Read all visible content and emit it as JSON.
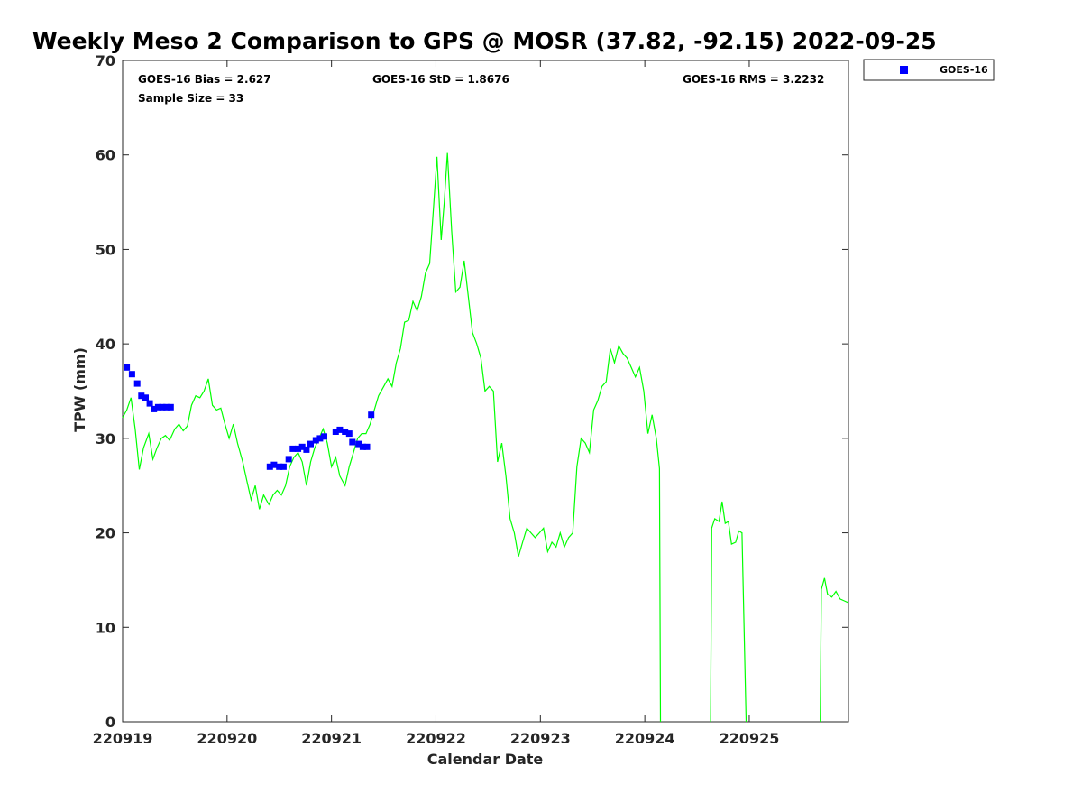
{
  "chart_data": {
    "type": "line",
    "title": "Weekly Meso 2 Comparison to GPS @ MOSR (37.82, -92.15) 2022-09-25",
    "xlabel": "Calendar Date",
    "ylabel": "TPW (mm)",
    "xlim": [
      220919,
      220925.95
    ],
    "ylim": [
      0,
      70
    ],
    "x_ticks": [
      {
        "value": 220919,
        "label": "220919"
      },
      {
        "value": 220920,
        "label": "220920"
      },
      {
        "value": 220921,
        "label": "220921"
      },
      {
        "value": 220922,
        "label": "220922"
      },
      {
        "value": 220923,
        "label": "220923"
      },
      {
        "value": 220924,
        "label": "220924"
      },
      {
        "value": 220925,
        "label": "220925"
      }
    ],
    "y_ticks": [
      0,
      10,
      20,
      30,
      40,
      50,
      60,
      70
    ],
    "grid": false,
    "legend_position": "top-right, outside plot",
    "stats": {
      "bias": "GOES-16 Bias = 2.627",
      "std": "GOES-16 StD = 1.8676",
      "rms": "GOES-16 RMS = 3.2232",
      "sample": "Sample Size = 33"
    },
    "series": [
      {
        "name": "GOES-16",
        "kind": "scatter",
        "marker": "square",
        "color": "#0000ff",
        "points": [
          [
            220919.04,
            37.5
          ],
          [
            220919.09,
            36.8
          ],
          [
            220919.14,
            35.8
          ],
          [
            220919.18,
            34.5
          ],
          [
            220919.22,
            34.3
          ],
          [
            220919.26,
            33.7
          ],
          [
            220919.3,
            33.1
          ],
          [
            220919.34,
            33.3
          ],
          [
            220919.38,
            33.3
          ],
          [
            220919.42,
            33.3
          ],
          [
            220919.46,
            33.3
          ],
          [
            220920.41,
            27.0
          ],
          [
            220920.45,
            27.2
          ],
          [
            220920.5,
            27.0
          ],
          [
            220920.54,
            27.0
          ],
          [
            220920.59,
            27.8
          ],
          [
            220920.63,
            28.9
          ],
          [
            220920.68,
            28.9
          ],
          [
            220920.72,
            29.1
          ],
          [
            220920.76,
            28.8
          ],
          [
            220920.8,
            29.4
          ],
          [
            220920.85,
            29.8
          ],
          [
            220920.89,
            30.0
          ],
          [
            220920.93,
            30.2
          ],
          [
            220921.04,
            30.7
          ],
          [
            220921.08,
            30.9
          ],
          [
            220921.13,
            30.7
          ],
          [
            220921.17,
            30.5
          ],
          [
            220921.2,
            29.6
          ],
          [
            220921.26,
            29.4
          ],
          [
            220921.3,
            29.1
          ],
          [
            220921.34,
            29.1
          ],
          [
            220921.38,
            32.5
          ]
        ]
      },
      {
        "kind": "line",
        "color": "#00ff00",
        "points": [
          [
            220919.0,
            32.2
          ],
          [
            220919.04,
            33.0
          ],
          [
            220919.08,
            34.3
          ],
          [
            220919.12,
            31.0
          ],
          [
            220919.16,
            26.7
          ],
          [
            220919.2,
            29.0
          ],
          [
            220919.25,
            30.5
          ],
          [
            220919.29,
            27.8
          ],
          [
            220919.33,
            29.0
          ],
          [
            220919.37,
            30.0
          ],
          [
            220919.41,
            30.3
          ],
          [
            220919.45,
            29.8
          ],
          [
            220919.5,
            31.0
          ],
          [
            220919.54,
            31.5
          ],
          [
            220919.58,
            30.8
          ],
          [
            220919.62,
            31.3
          ],
          [
            220919.66,
            33.5
          ],
          [
            220919.7,
            34.5
          ],
          [
            220919.74,
            34.3
          ],
          [
            220919.78,
            35.0
          ],
          [
            220919.82,
            36.3
          ],
          [
            220919.86,
            33.5
          ],
          [
            220919.9,
            33.0
          ],
          [
            220919.94,
            33.2
          ],
          [
            220919.98,
            31.5
          ],
          [
            220920.02,
            30.0
          ],
          [
            220920.06,
            31.5
          ],
          [
            220920.1,
            29.5
          ],
          [
            220920.15,
            27.5
          ],
          [
            220920.19,
            25.5
          ],
          [
            220920.23,
            23.5
          ],
          [
            220920.27,
            25.0
          ],
          [
            220920.31,
            22.5
          ],
          [
            220920.35,
            24.0
          ],
          [
            220920.4,
            23.0
          ],
          [
            220920.44,
            24.0
          ],
          [
            220920.48,
            24.5
          ],
          [
            220920.52,
            24.0
          ],
          [
            220920.56,
            25.0
          ],
          [
            220920.6,
            27.0
          ],
          [
            220920.64,
            28.0
          ],
          [
            220920.68,
            28.5
          ],
          [
            220920.72,
            27.5
          ],
          [
            220920.76,
            25.0
          ],
          [
            220920.8,
            27.5
          ],
          [
            220920.84,
            29.0
          ],
          [
            220920.88,
            30.0
          ],
          [
            220920.92,
            31.0
          ],
          [
            220920.96,
            29.5
          ],
          [
            220921.0,
            27.0
          ],
          [
            220921.04,
            28.0
          ],
          [
            220921.08,
            26.0
          ],
          [
            220921.13,
            25.0
          ],
          [
            220921.17,
            27.0
          ],
          [
            220921.21,
            28.5
          ],
          [
            220921.25,
            30.0
          ],
          [
            220921.29,
            30.5
          ],
          [
            220921.33,
            30.5
          ],
          [
            220921.37,
            31.5
          ],
          [
            220921.41,
            33.0
          ],
          [
            220921.45,
            34.5
          ],
          [
            220921.5,
            35.5
          ],
          [
            220921.54,
            36.3
          ],
          [
            220921.58,
            35.5
          ],
          [
            220921.62,
            38.0
          ],
          [
            220921.66,
            39.5
          ],
          [
            220921.7,
            42.3
          ],
          [
            220921.74,
            42.5
          ],
          [
            220921.78,
            44.5
          ],
          [
            220921.82,
            43.5
          ],
          [
            220921.86,
            45.0
          ],
          [
            220921.9,
            47.5
          ],
          [
            220921.94,
            48.5
          ],
          [
            220921.98,
            55.0
          ],
          [
            220922.01,
            59.8
          ],
          [
            220922.05,
            51.0
          ],
          [
            220922.08,
            55.0
          ],
          [
            220922.11,
            60.2
          ],
          [
            220922.15,
            52.0
          ],
          [
            220922.19,
            45.5
          ],
          [
            220922.23,
            46.0
          ],
          [
            220922.27,
            48.8
          ],
          [
            220922.31,
            45.0
          ],
          [
            220922.35,
            41.2
          ],
          [
            220922.39,
            40.0
          ],
          [
            220922.43,
            38.5
          ],
          [
            220922.47,
            35.0
          ],
          [
            220922.51,
            35.5
          ],
          [
            220922.55,
            35.0
          ],
          [
            220922.59,
            27.5
          ],
          [
            220922.63,
            29.5
          ],
          [
            220922.67,
            26.0
          ],
          [
            220922.71,
            21.5
          ],
          [
            220922.75,
            20.0
          ],
          [
            220922.79,
            17.5
          ],
          [
            220922.83,
            19.0
          ],
          [
            220922.87,
            20.5
          ],
          [
            220922.91,
            20.0
          ],
          [
            220922.95,
            19.5
          ],
          [
            220922.99,
            20.0
          ],
          [
            220923.03,
            20.5
          ],
          [
            220923.07,
            18.0
          ],
          [
            220923.11,
            19.0
          ],
          [
            220923.15,
            18.5
          ],
          [
            220923.19,
            20.0
          ],
          [
            220923.23,
            18.5
          ],
          [
            220923.27,
            19.5
          ],
          [
            220923.31,
            20.0
          ],
          [
            220923.35,
            27.0
          ],
          [
            220923.39,
            30.0
          ],
          [
            220923.43,
            29.5
          ],
          [
            220923.47,
            28.5
          ],
          [
            220923.51,
            33.0
          ],
          [
            220923.55,
            34.0
          ],
          [
            220923.59,
            35.5
          ],
          [
            220923.63,
            36.0
          ],
          [
            220923.67,
            39.5
          ],
          [
            220923.71,
            38.0
          ],
          [
            220923.75,
            39.8
          ],
          [
            220923.79,
            39.0
          ],
          [
            220923.83,
            38.5
          ],
          [
            220923.87,
            37.5
          ],
          [
            220923.91,
            36.5
          ],
          [
            220923.95,
            37.5
          ],
          [
            220923.99,
            35.0
          ],
          [
            220924.03,
            30.5
          ],
          [
            220924.07,
            32.5
          ],
          [
            220924.11,
            30.0
          ],
          [
            220924.14,
            26.8
          ],
          [
            220924.15,
            0
          ],
          null,
          [
            220924.63,
            0
          ],
          [
            220924.64,
            20.5
          ],
          [
            220924.67,
            21.5
          ],
          [
            220924.71,
            21.2
          ],
          [
            220924.74,
            23.3
          ],
          [
            220924.77,
            21.0
          ],
          [
            220924.8,
            21.2
          ],
          [
            220924.83,
            18.8
          ],
          [
            220924.87,
            19.0
          ],
          [
            220924.9,
            20.2
          ],
          [
            220924.93,
            20.0
          ],
          [
            220924.97,
            0
          ],
          null,
          [
            220925.68,
            0
          ],
          [
            220925.69,
            14.0
          ],
          [
            220925.72,
            15.2
          ],
          [
            220925.75,
            13.5
          ],
          [
            220925.79,
            13.2
          ],
          [
            220925.83,
            13.8
          ],
          [
            220925.87,
            13.0
          ],
          [
            220925.91,
            12.8
          ],
          [
            220925.95,
            12.6
          ]
        ]
      }
    ]
  },
  "colors": {
    "goes_marker": "#0000ff",
    "gps_line": "#00ff00"
  }
}
